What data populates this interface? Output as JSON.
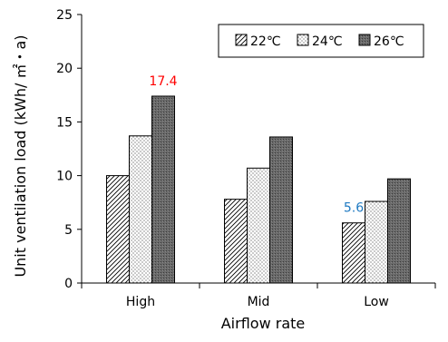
{
  "chart_data": {
    "type": "bar",
    "title": "",
    "xlabel": "Airflow rate",
    "ylabel": "Unit ventilation  load (kWh/ ㎡・a)",
    "ylim": [
      0,
      25
    ],
    "yticks": [
      0,
      5,
      10,
      15,
      20,
      25
    ],
    "grid": false,
    "legend_position": "top-right",
    "categories": [
      "High",
      "Mid",
      "Low"
    ],
    "series": [
      {
        "name": "22℃",
        "pattern": "diagonal-hatch",
        "values": [
          10.0,
          7.8,
          5.6
        ]
      },
      {
        "name": "24℃",
        "pattern": "dotted",
        "values": [
          13.7,
          10.7,
          7.6
        ]
      },
      {
        "name": "26℃",
        "pattern": "dark-gray",
        "values": [
          17.4,
          13.6,
          9.7
        ]
      }
    ],
    "annotations": [
      {
        "text": "17.4",
        "category": "High",
        "series": "26℃",
        "color": "#ff0000"
      },
      {
        "text": "5.6",
        "category": "Low",
        "series": "22℃",
        "color": "#1f7ac2"
      }
    ]
  }
}
